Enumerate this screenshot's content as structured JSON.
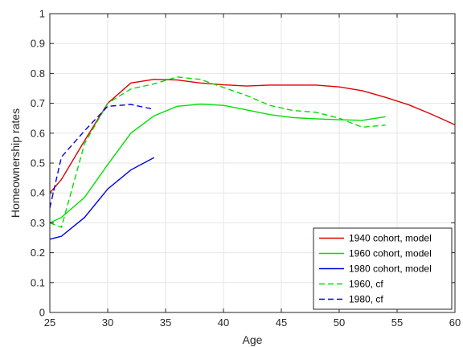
{
  "chart_data": {
    "type": "line",
    "title": "",
    "xlabel": "Age",
    "ylabel": "Homeownership rates",
    "xlim": [
      25,
      60
    ],
    "ylim": [
      0,
      1
    ],
    "x_ticks": [
      "25",
      "30",
      "35",
      "40",
      "45",
      "50",
      "55",
      "60"
    ],
    "y_ticks": [
      "0",
      "0.1",
      "0.2",
      "0.3",
      "0.4",
      "0.5",
      "0.6",
      "0.7",
      "0.8",
      "0.9",
      "1"
    ],
    "grid": true,
    "legend_position": "bottom-right",
    "series": [
      {
        "name": "1940 cohort, model",
        "color": "#e00000",
        "dash": "solid",
        "points": [
          [
            25,
            0.4
          ],
          [
            26,
            0.445
          ],
          [
            28,
            0.575
          ],
          [
            30,
            0.7
          ],
          [
            32,
            0.768
          ],
          [
            34,
            0.78
          ],
          [
            36,
            0.778
          ],
          [
            38,
            0.768
          ],
          [
            40,
            0.762
          ],
          [
            42,
            0.758
          ],
          [
            44,
            0.761
          ],
          [
            46,
            0.761
          ],
          [
            48,
            0.761
          ],
          [
            50,
            0.755
          ],
          [
            52,
            0.742
          ],
          [
            54,
            0.72
          ],
          [
            56,
            0.695
          ],
          [
            58,
            0.663
          ],
          [
            60,
            0.628
          ]
        ]
      },
      {
        "name": "1960 cohort, model",
        "color": "#00e000",
        "dash": "solid",
        "points": [
          [
            25,
            0.3
          ],
          [
            26,
            0.318
          ],
          [
            28,
            0.385
          ],
          [
            30,
            0.495
          ],
          [
            32,
            0.6
          ],
          [
            34,
            0.658
          ],
          [
            36,
            0.69
          ],
          [
            38,
            0.697
          ],
          [
            40,
            0.693
          ],
          [
            42,
            0.678
          ],
          [
            44,
            0.662
          ],
          [
            46,
            0.652
          ],
          [
            48,
            0.648
          ],
          [
            50,
            0.645
          ],
          [
            52,
            0.643
          ],
          [
            54,
            0.655
          ]
        ]
      },
      {
        "name": "1980 cohort, model",
        "color": "#0000e0",
        "dash": "solid",
        "points": [
          [
            25,
            0.245
          ],
          [
            26,
            0.255
          ],
          [
            28,
            0.318
          ],
          [
            30,
            0.413
          ],
          [
            32,
            0.477
          ],
          [
            34,
            0.518
          ]
        ]
      },
      {
        "name": "1960, cf",
        "color": "#00e000",
        "dash": "dashed",
        "points": [
          [
            25,
            0.3
          ],
          [
            26,
            0.285
          ],
          [
            28,
            0.565
          ],
          [
            30,
            0.7
          ],
          [
            32,
            0.748
          ],
          [
            34,
            0.765
          ],
          [
            36,
            0.788
          ],
          [
            38,
            0.78
          ],
          [
            40,
            0.753
          ],
          [
            42,
            0.726
          ],
          [
            44,
            0.693
          ],
          [
            46,
            0.676
          ],
          [
            48,
            0.67
          ],
          [
            50,
            0.65
          ],
          [
            52,
            0.62
          ],
          [
            54,
            0.627
          ]
        ]
      },
      {
        "name": "1980, cf",
        "color": "#0000e0",
        "dash": "dashed",
        "points": [
          [
            25,
            0.35
          ],
          [
            26,
            0.52
          ],
          [
            28,
            0.608
          ],
          [
            30,
            0.69
          ],
          [
            32,
            0.696
          ],
          [
            34,
            0.68
          ]
        ]
      }
    ]
  }
}
